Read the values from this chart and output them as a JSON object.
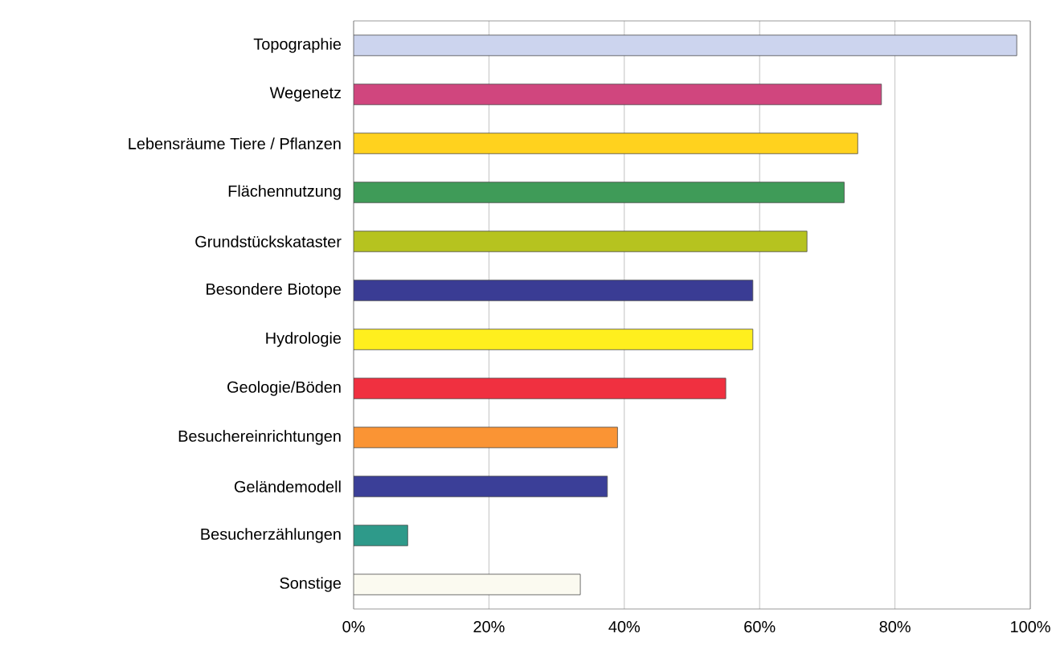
{
  "chart_data": {
    "type": "bar",
    "orientation": "horizontal",
    "categories": [
      "Topographie",
      "Wegenetz",
      "Lebensräume Tiere / Pflanzen",
      "Flächennutzung",
      "Grundstückskataster",
      "Besondere Biotope",
      "Hydrologie",
      "Geologie/Böden",
      "Besuchereinrichtungen",
      "Geländemodell",
      "Besucherzählungen",
      "Sonstige"
    ],
    "values": [
      98,
      78,
      74.5,
      72.5,
      67,
      59,
      59,
      55,
      39,
      37.5,
      8,
      33.5
    ],
    "colors": [
      "#ccd4ee",
      "#d0467e",
      "#ffd21e",
      "#3f9b58",
      "#b6c31f",
      "#3a3c94",
      "#ffef1e",
      "#f03040",
      "#fa9434",
      "#3b3f98",
      "#2e9a8a",
      "#fbfaf0"
    ],
    "xlim": [
      0,
      100
    ],
    "xticks": [
      {
        "value": 0,
        "label": "0%"
      },
      {
        "value": 20,
        "label": "20%"
      },
      {
        "value": 40,
        "label": "40%"
      },
      {
        "value": 60,
        "label": "60%"
      },
      {
        "value": 80,
        "label": "80%"
      },
      {
        "value": 100,
        "label": "100%"
      }
    ],
    "grid": "x"
  }
}
